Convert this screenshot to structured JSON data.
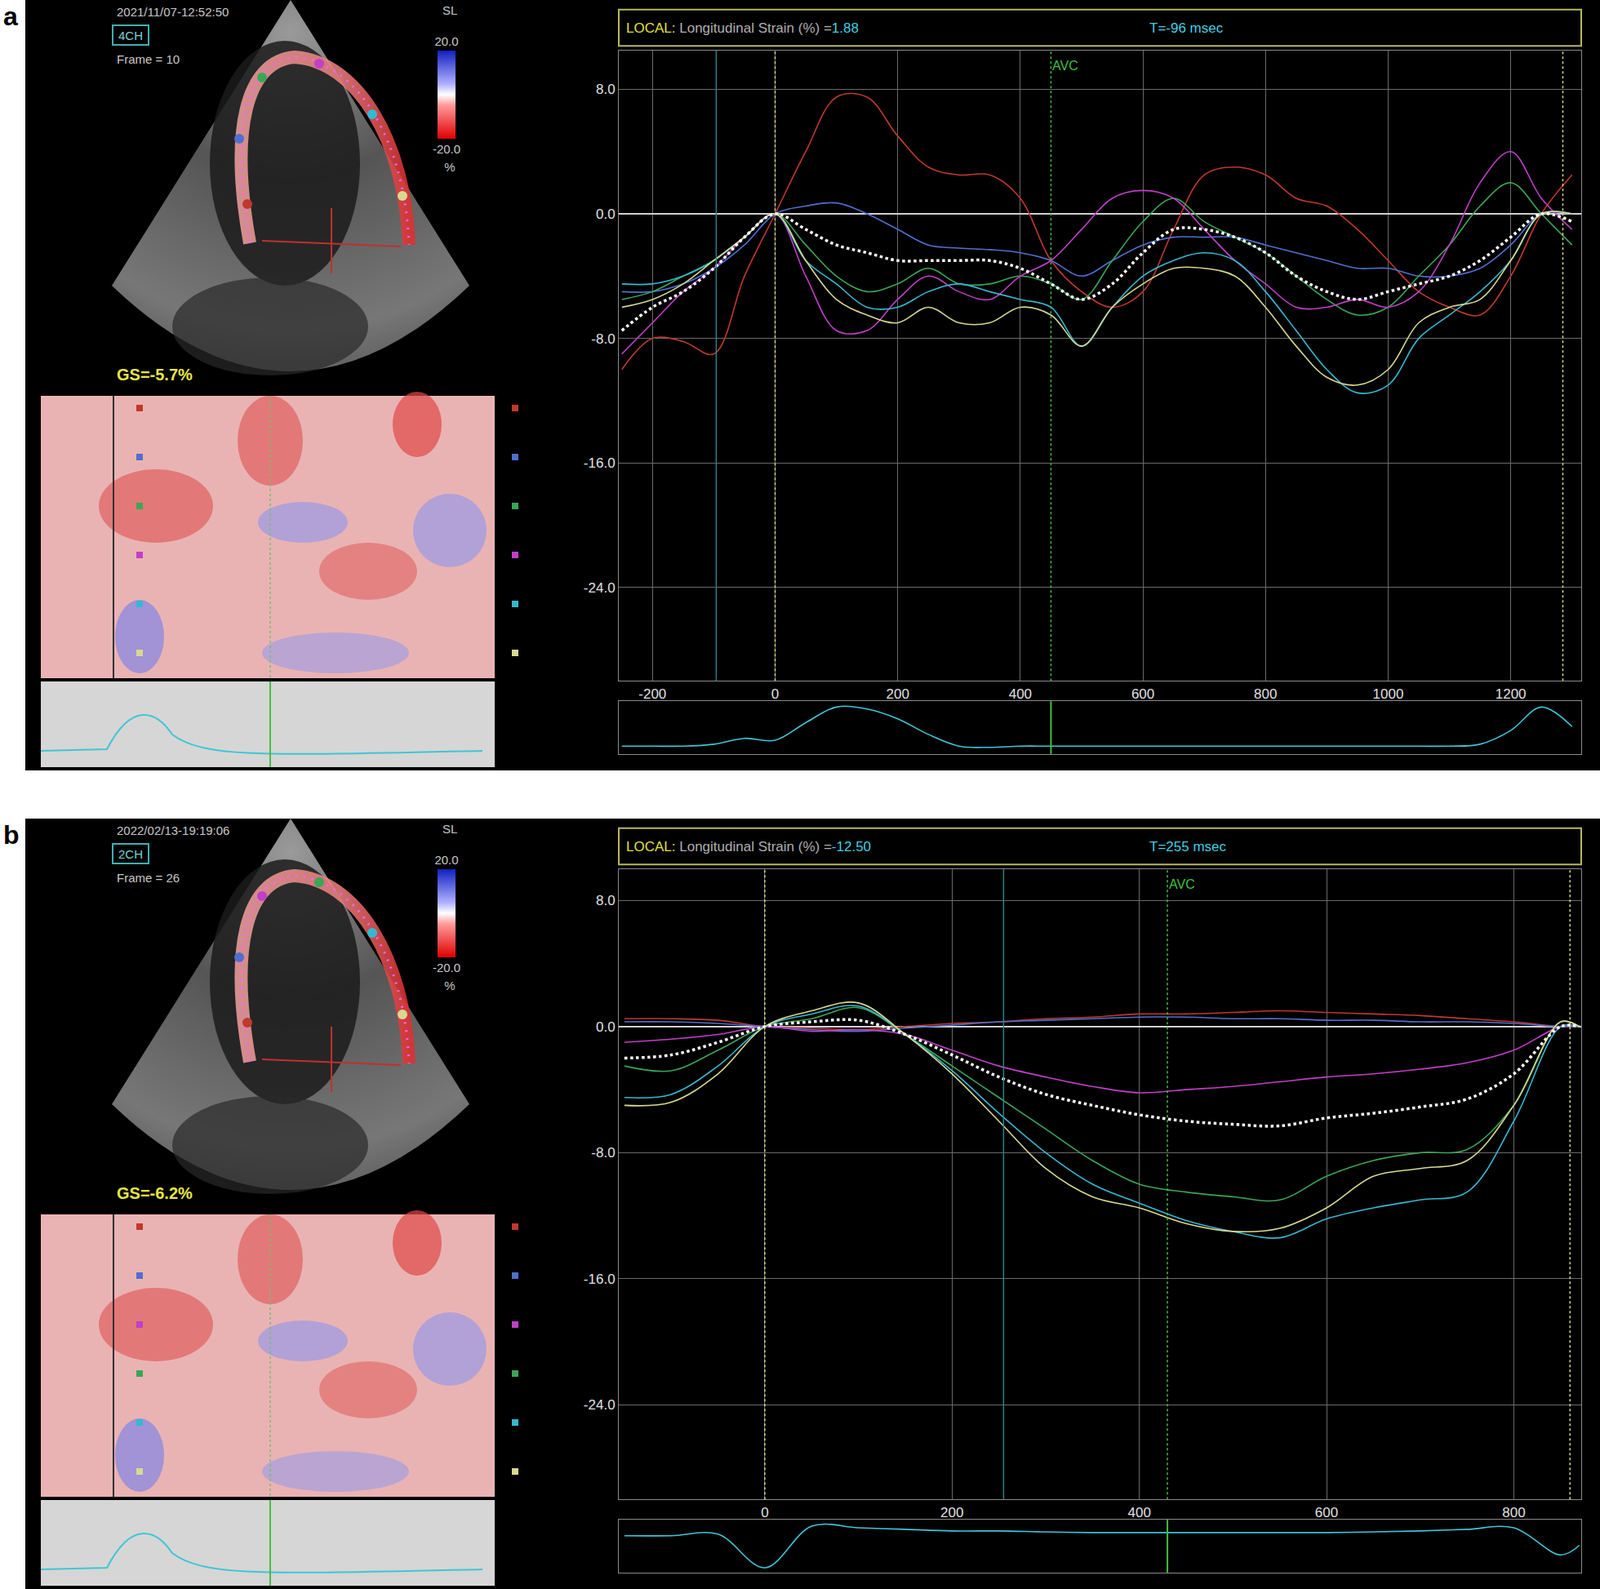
{
  "chart_data": [
    {
      "type": "line",
      "panel": "a",
      "image": {
        "timestamp": "2021/11/07-12:52:50",
        "view": "4CH",
        "frame": "Frame = 10",
        "global_strain": "GS=-5.7%",
        "colorbar": {
          "title": "SL",
          "unit": "%",
          "range": [
            -20,
            20
          ],
          "ticks": [
            {
              "value": 20,
              "label": "20.0"
            },
            {
              "value": -20,
              "label": "-20.0"
            }
          ]
        }
      },
      "readout": {
        "label": "LOCAL:",
        "text": "Longitudinal Strain (%) =",
        "value": "1.88",
        "time": "T=-96 msec"
      },
      "x": [
        -250,
        -200,
        -150,
        -100,
        -50,
        0,
        50,
        100,
        150,
        200,
        250,
        300,
        350,
        400,
        450,
        500,
        550,
        600,
        650,
        700,
        750,
        800,
        850,
        900,
        950,
        1000,
        1050,
        1100,
        1150,
        1200,
        1250,
        1300
      ],
      "xlim": [
        -255,
        1315
      ],
      "xticks": [
        -200,
        0,
        200,
        400,
        600,
        800,
        1000,
        1200
      ],
      "ylim": [
        -30,
        10.5
      ],
      "yticks": [
        {
          "value": 8,
          "label": "8.0"
        },
        {
          "value": 0,
          "label": "0.0"
        },
        {
          "value": -8,
          "label": "-8.0"
        },
        {
          "value": -16,
          "label": "-16.0"
        },
        {
          "value": -24,
          "label": "-24.0"
        }
      ],
      "grid": true,
      "series": [
        {
          "color": "#c0392b",
          "values": [
            -10,
            -8,
            -8.2,
            -9,
            -4,
            0,
            4,
            7.5,
            7.5,
            5,
            3,
            2.5,
            2.5,
            1,
            -3,
            -5,
            -6,
            -5,
            -1,
            2.5,
            3,
            2.5,
            1,
            0.5,
            -1,
            -3,
            -5,
            -6,
            -6.5,
            -4,
            0,
            2.5
          ]
        },
        {
          "color": "#4f6fd0",
          "values": [
            -5,
            -5,
            -4.5,
            -3.5,
            -2,
            0,
            0.5,
            0.7,
            0,
            -1,
            -2,
            -2.2,
            -2.3,
            -2.5,
            -3,
            -4,
            -3,
            -2,
            -1.5,
            -1.5,
            -1.5,
            -2,
            -2.5,
            -3,
            -3.5,
            -3.5,
            -4,
            -4,
            -3.5,
            -2,
            0,
            0
          ]
        },
        {
          "color": "#3aa657",
          "values": [
            -5.5,
            -5,
            -4,
            -3,
            -1.5,
            0,
            -2,
            -4,
            -5,
            -4.5,
            -3.5,
            -4.5,
            -4.5,
            -4,
            -4.5,
            -5.5,
            -3,
            -0.5,
            1,
            -0.5,
            -1.5,
            -2.5,
            -4,
            -5.5,
            -6.5,
            -6,
            -4,
            -2,
            0.5,
            2,
            0,
            -2
          ]
        },
        {
          "color": "#c23fc8",
          "values": [
            -9,
            -7,
            -5,
            -3.5,
            -1.5,
            0,
            -4,
            -7.5,
            -7.5,
            -5.5,
            -4,
            -5,
            -5.5,
            -4,
            -3,
            -1,
            1,
            1.5,
            1,
            -1,
            -3,
            -4.5,
            -6,
            -6,
            -5.5,
            -6,
            -5,
            -2,
            2,
            4,
            1,
            -1
          ]
        },
        {
          "color": "#35b8d0",
          "values": [
            -4.5,
            -4.5,
            -4,
            -3,
            -1.5,
            0,
            -3,
            -4.5,
            -6,
            -6,
            -5,
            -4.5,
            -5,
            -5.5,
            -6,
            -8.5,
            -6,
            -4,
            -3,
            -2.5,
            -3,
            -5,
            -7.5,
            -10,
            -11.5,
            -11,
            -8,
            -6.5,
            -5,
            -3,
            0,
            0
          ]
        },
        {
          "color": "#d8d890",
          "values": [
            -6,
            -5.5,
            -4.5,
            -3,
            -1.5,
            0,
            -3,
            -5.5,
            -6.5,
            -7,
            -6,
            -7,
            -7,
            -6,
            -6.5,
            -8.5,
            -6,
            -4.5,
            -3.5,
            -3.5,
            -4,
            -6,
            -8.5,
            -10.5,
            -11,
            -10,
            -7,
            -6,
            -5.5,
            -3,
            0,
            0
          ]
        },
        {
          "color": "#ffffff",
          "line_style": "dotted",
          "values": [
            -7.5,
            -6,
            -5,
            -3.5,
            -1.5,
            0,
            -1,
            -2,
            -2.5,
            -3,
            -3,
            -3,
            -3,
            -3.5,
            -4.5,
            -5.5,
            -4.5,
            -2.5,
            -1,
            -1,
            -1.5,
            -2.5,
            -4,
            -5,
            -5.5,
            -5,
            -4.5,
            -4,
            -3,
            -1.5,
            0,
            -0.5
          ]
        }
      ],
      "ecg": {
        "color": "#3ec6d6",
        "ylim": [
          -0.2,
          1.15
        ],
        "values": [
          0,
          0,
          0,
          0.05,
          0.2,
          0.15,
          0.6,
          1.0,
          0.95,
          0.7,
          0.3,
          0,
          -0.03,
          0,
          0,
          0,
          0,
          0,
          0,
          0,
          0,
          0,
          0,
          0,
          0,
          0,
          0,
          0,
          0.05,
          0.4,
          1.0,
          0.5
        ]
      },
      "events": {
        "cycle_x": [
          0,
          1285
        ],
        "cursor_x": -96,
        "avc_x": 450,
        "avc_label": "AVC"
      }
    },
    {
      "type": "line",
      "panel": "b",
      "image": {
        "timestamp": "2022/02/13-19:19:06",
        "view": "2CH",
        "frame": "Frame = 26",
        "global_strain": "GS=-6.2%",
        "colorbar": {
          "title": "SL",
          "unit": "%",
          "range": [
            -20,
            20
          ],
          "ticks": [
            {
              "value": 20,
              "label": "20.0"
            },
            {
              "value": -20,
              "label": "-20.0"
            }
          ]
        }
      },
      "readout": {
        "label": "LOCAL:",
        "text": "Longitudinal Strain (%) =",
        "value": "-12.50",
        "time": "T=255 msec"
      },
      "x": [
        -150,
        -100,
        -50,
        0,
        50,
        100,
        150,
        200,
        250,
        300,
        350,
        400,
        450,
        500,
        550,
        600,
        650,
        700,
        750,
        800,
        850,
        870
      ],
      "xlim": [
        -156,
        872
      ],
      "xticks": [
        0,
        200,
        400,
        600,
        800
      ],
      "ylim": [
        -30,
        10
      ],
      "yticks": [
        {
          "value": 8,
          "label": "8.0"
        },
        {
          "value": 0,
          "label": "0.0"
        },
        {
          "value": -8,
          "label": "-8.0"
        },
        {
          "value": -16,
          "label": "-16.0"
        },
        {
          "value": -24,
          "label": "-24.0"
        }
      ],
      "grid": true,
      "series": [
        {
          "color": "#c0392b",
          "values": [
            0.5,
            0.5,
            0.4,
            0,
            -0.1,
            -0.2,
            0,
            0.2,
            0.3,
            0.5,
            0.6,
            0.8,
            0.8,
            0.9,
            1,
            0.9,
            0.8,
            0.7,
            0.5,
            0.3,
            0,
            0
          ]
        },
        {
          "color": "#4f6fd0",
          "values": [
            0.3,
            0.3,
            0.2,
            0,
            -0.2,
            -0.3,
            -0.1,
            0.1,
            0.3,
            0.4,
            0.5,
            0.6,
            0.6,
            0.5,
            0.5,
            0.4,
            0.4,
            0.3,
            0.3,
            0.2,
            0,
            0
          ]
        },
        {
          "color": "#c23fc8",
          "values": [
            -1,
            -0.8,
            -0.5,
            0,
            -0.3,
            -0.2,
            -0.5,
            -1.5,
            -2.5,
            -3.2,
            -3.8,
            -4.2,
            -4,
            -3.8,
            -3.5,
            -3.2,
            -3,
            -2.7,
            -2.3,
            -1.5,
            0,
            0
          ]
        },
        {
          "color": "#3aa657",
          "values": [
            -2.5,
            -2.8,
            -1.5,
            0,
            0.5,
            1.2,
            -0.5,
            -2.5,
            -4.5,
            -6.5,
            -8.5,
            -10,
            -10.5,
            -10.8,
            -11,
            -9.5,
            -8.5,
            -8,
            -7.8,
            -5,
            0.3,
            0
          ]
        },
        {
          "color": "#35b8d0",
          "values": [
            -4.5,
            -4.3,
            -2.5,
            0,
            0.8,
            1.3,
            -0.5,
            -2.8,
            -5.5,
            -8,
            -10,
            -11.2,
            -12.3,
            -13,
            -13.4,
            -12.2,
            -11.5,
            -11,
            -10.5,
            -6,
            0,
            0
          ]
        },
        {
          "color": "#d8d890",
          "values": [
            -5,
            -4.8,
            -3,
            0,
            1,
            1.5,
            -0.5,
            -3,
            -6,
            -9,
            -10.8,
            -11.5,
            -12.5,
            -13,
            -12.8,
            -11.5,
            -9.5,
            -9,
            -8.5,
            -5,
            0.3,
            0
          ]
        },
        {
          "color": "#ffffff",
          "line_style": "dotted",
          "values": [
            -2,
            -1.8,
            -1,
            0,
            0.3,
            0.4,
            -0.5,
            -1.8,
            -3.2,
            -4.3,
            -5,
            -5.6,
            -6,
            -6.2,
            -6.3,
            -5.8,
            -5.5,
            -5.1,
            -4.6,
            -3,
            0,
            0
          ]
        }
      ],
      "ecg": {
        "color": "#3ec6d6",
        "ylim": [
          -1.15,
          0.5
        ],
        "values": [
          0,
          0,
          0.05,
          -1,
          0.3,
          0.25,
          0.2,
          0.15,
          0.15,
          0.12,
          0.1,
          0.1,
          0.1,
          0.1,
          0.1,
          0.1,
          0.12,
          0.15,
          0.2,
          0.25,
          -0.6,
          -0.3
        ]
      },
      "events": {
        "cycle_x": [
          0,
          860
        ],
        "cursor_x": 255,
        "avc_x": 430,
        "avc_label": "AVC"
      }
    }
  ]
}
